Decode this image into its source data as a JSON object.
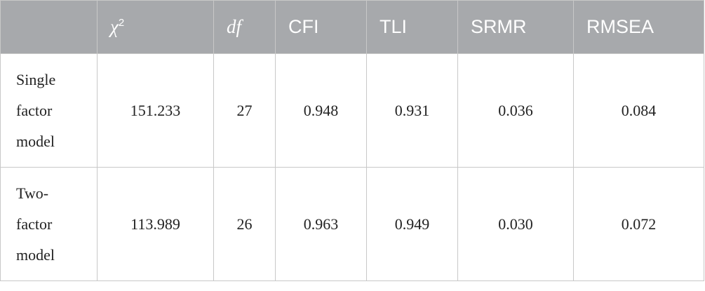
{
  "table": {
    "header": [
      {
        "symbol": "χ",
        "sup": "2"
      },
      "df",
      "CFI",
      "TLI",
      "SRMR",
      "RMSEA"
    ],
    "rows": [
      [
        "Single factor model",
        "151.233",
        "27",
        "0.948",
        "0.931",
        "0.036",
        "0.084"
      ],
      [
        "Two-factor model",
        "113.989",
        "26",
        "0.963",
        "0.949",
        "0.030",
        "0.072"
      ]
    ]
  }
}
